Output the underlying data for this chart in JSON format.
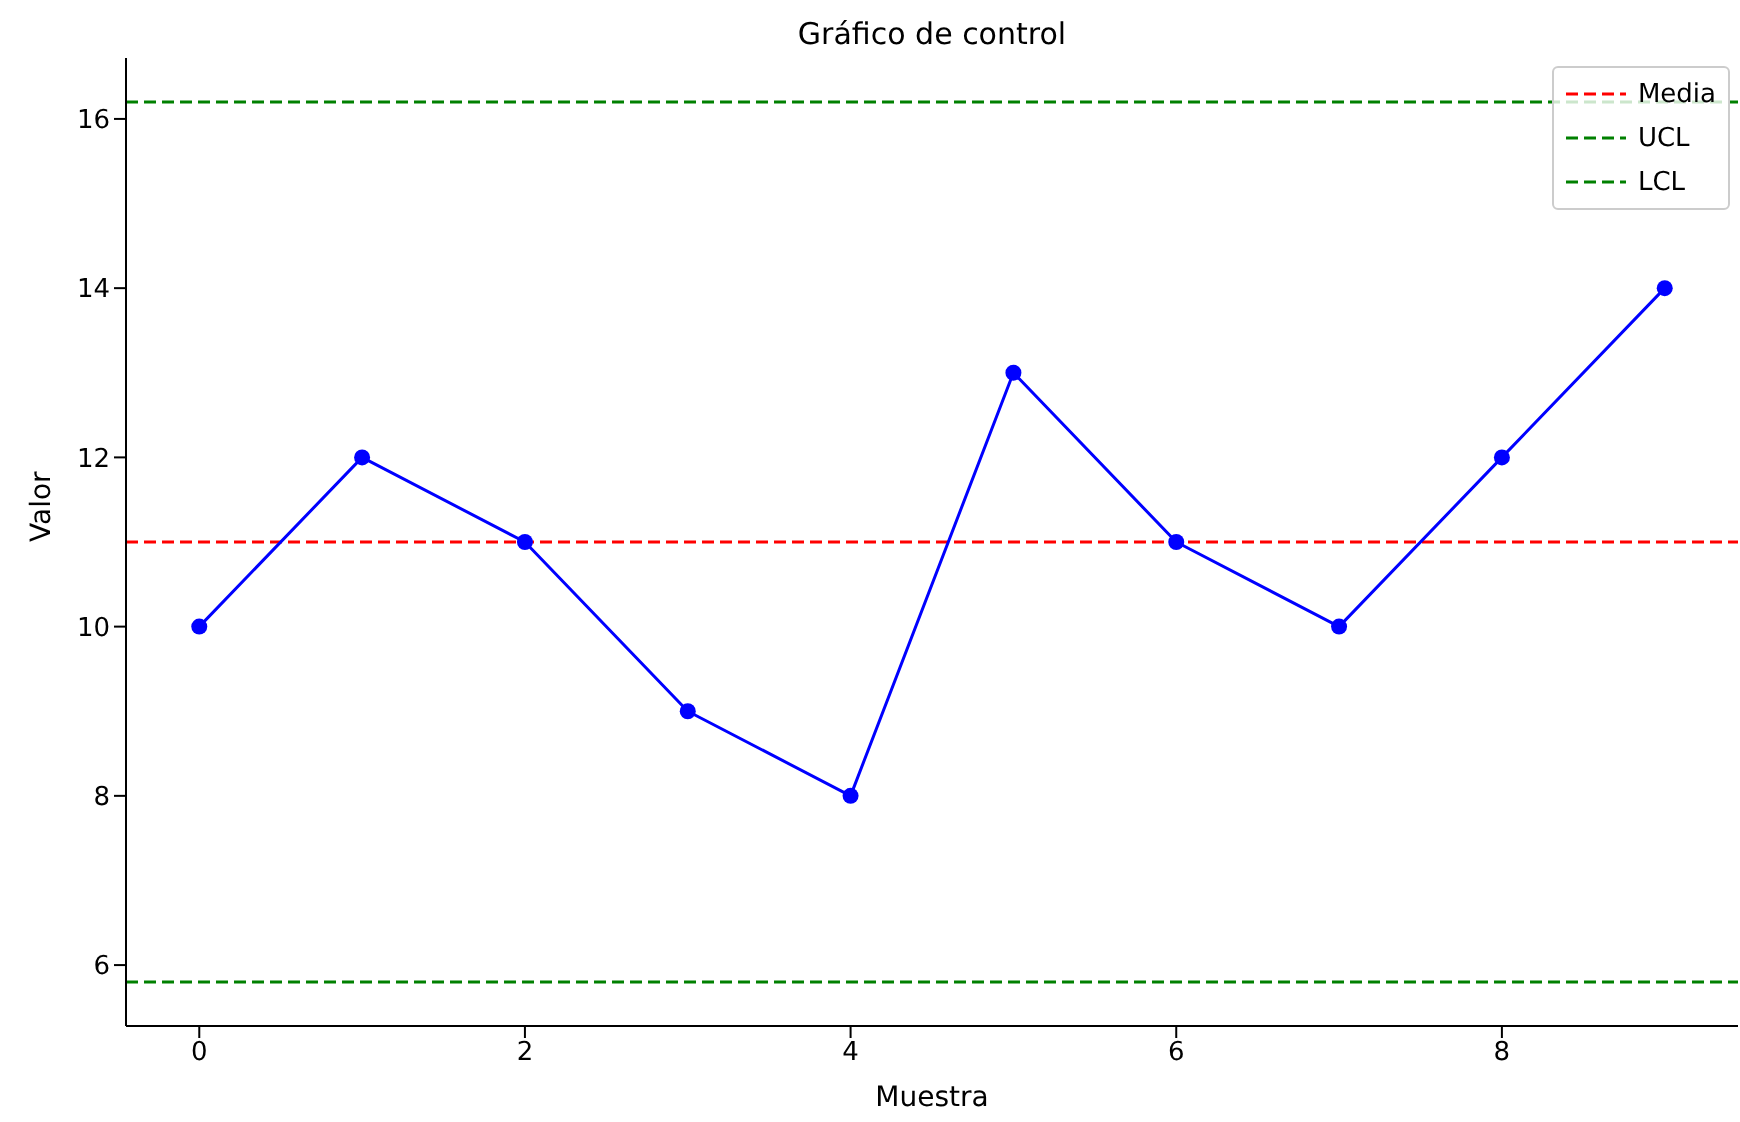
{
  "chart_data": {
    "type": "line",
    "title": "Gráfico de control",
    "xlabel": "Muestra",
    "ylabel": "Valor",
    "x": [
      0,
      1,
      2,
      3,
      4,
      5,
      6,
      7,
      8,
      9
    ],
    "series": [
      {
        "color": "#0000ff",
        "values": [
          10,
          12,
          11,
          9,
          8,
          13,
          11,
          10,
          12,
          14
        ]
      }
    ],
    "xlim": [
      -0.45,
      9.45
    ],
    "xticks": [
      0,
      2,
      4,
      6,
      8
    ],
    "ylim": [
      5.28,
      16.72
    ],
    "yticks": [
      6,
      8,
      10,
      12,
      14,
      16
    ],
    "ref_lines": [
      {
        "axis": "y",
        "value": 11,
        "label": "Media",
        "color": "#ff0000",
        "line_style": "dashed"
      },
      {
        "axis": "y",
        "value": 16.2,
        "label": "UCL",
        "color": "#008000",
        "line_style": "dashed"
      },
      {
        "axis": "y",
        "value": 5.8,
        "label": "LCL",
        "color": "#008000",
        "line_style": "dashed"
      }
    ],
    "legend": "top right",
    "marker": "circle",
    "line_style": "solid",
    "grid": false
  }
}
